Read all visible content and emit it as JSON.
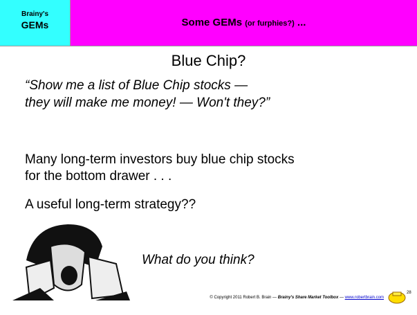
{
  "header": {
    "left_small": "Brainy's",
    "left_big": "GEMs",
    "title_main": "Some GEMs",
    "title_sub": "(or furphies?)",
    "title_end": "..."
  },
  "title": "Blue Chip?",
  "quote": [
    "“Show me a list of Blue Chip stocks —",
    "they will make me money! — Won't they?”"
  ],
  "paragraph": [
    "Many long-term investors buy blue chip stocks",
    "for the bottom drawer . . ."
  ],
  "question": "A useful long-term strategy??",
  "caption": "What do you think?",
  "page_number": "28",
  "footer": {
    "copyright": "© Copyright 2011 Robert B. Brain —",
    "book": "Brainy's Share Market Toolbox",
    "separator": "—",
    "url": "www.robertbrain.com"
  }
}
